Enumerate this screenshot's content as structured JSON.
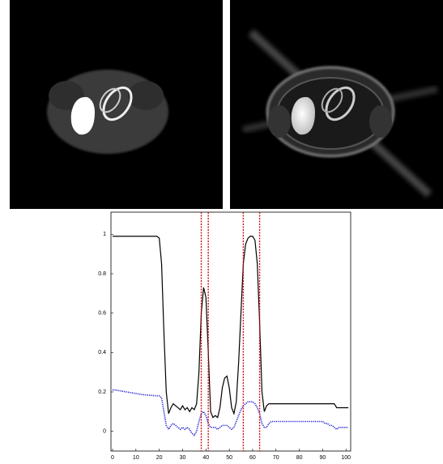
{
  "chart_data": {
    "type": "line",
    "x": [
      0,
      1,
      2,
      3,
      4,
      5,
      6,
      7,
      8,
      9,
      10,
      11,
      12,
      13,
      14,
      15,
      16,
      17,
      18,
      19,
      20,
      21,
      22,
      23,
      24,
      25,
      26,
      27,
      28,
      29,
      30,
      31,
      32,
      33,
      34,
      35,
      36,
      37,
      38,
      39,
      40,
      41,
      42,
      43,
      44,
      45,
      46,
      47,
      48,
      49,
      50,
      51,
      52,
      53,
      54,
      55,
      56,
      57,
      58,
      59,
      60,
      61,
      62,
      63,
      64,
      65,
      66,
      67,
      68,
      69,
      70,
      71,
      72,
      73,
      74,
      75,
      76,
      77,
      78,
      79,
      80,
      81,
      82,
      83,
      84,
      85,
      86,
      87,
      88,
      89,
      90,
      91,
      92,
      93,
      94,
      95,
      96,
      97,
      98,
      99,
      100,
      101
    ],
    "series": [
      {
        "color": "#000000",
        "style": "solid",
        "values": [
          0.99,
          0.99,
          0.99,
          0.99,
          0.99,
          0.99,
          0.99,
          0.99,
          0.99,
          0.99,
          0.99,
          0.99,
          0.99,
          0.99,
          0.99,
          0.99,
          0.99,
          0.99,
          0.99,
          0.99,
          0.98,
          0.85,
          0.5,
          0.2,
          0.09,
          0.12,
          0.14,
          0.13,
          0.12,
          0.11,
          0.13,
          0.11,
          0.12,
          0.1,
          0.12,
          0.11,
          0.14,
          0.3,
          0.6,
          0.73,
          0.68,
          0.4,
          0.1,
          0.07,
          0.08,
          0.07,
          0.12,
          0.22,
          0.27,
          0.28,
          0.22,
          0.12,
          0.09,
          0.15,
          0.35,
          0.6,
          0.85,
          0.95,
          0.98,
          0.99,
          0.99,
          0.97,
          0.85,
          0.55,
          0.2,
          0.1,
          0.13,
          0.14,
          0.14,
          0.14,
          0.14,
          0.14,
          0.14,
          0.14,
          0.14,
          0.14,
          0.14,
          0.14,
          0.14,
          0.14,
          0.14,
          0.14,
          0.14,
          0.14,
          0.14,
          0.14,
          0.14,
          0.14,
          0.14,
          0.14,
          0.14,
          0.14,
          0.14,
          0.14,
          0.14,
          0.14,
          0.12,
          0.12,
          0.12,
          0.12,
          0.12,
          0.12
        ]
      },
      {
        "color": "#1f1fd0",
        "style": "dotted",
        "values": [
          0.21,
          0.21,
          0.208,
          0.206,
          0.204,
          0.202,
          0.2,
          0.198,
          0.196,
          0.194,
          0.192,
          0.19,
          0.188,
          0.186,
          0.185,
          0.184,
          0.183,
          0.182,
          0.181,
          0.18,
          0.18,
          0.17,
          0.1,
          0.03,
          0.01,
          0.03,
          0.04,
          0.03,
          0.02,
          0.01,
          0.02,
          0.01,
          0.02,
          0.01,
          -0.01,
          -0.02,
          0.0,
          0.05,
          0.09,
          0.1,
          0.08,
          0.04,
          0.02,
          0.02,
          0.02,
          0.01,
          0.02,
          0.03,
          0.03,
          0.03,
          0.02,
          0.01,
          0.02,
          0.05,
          0.08,
          0.11,
          0.13,
          0.14,
          0.15,
          0.15,
          0.15,
          0.14,
          0.12,
          0.09,
          0.04,
          0.02,
          0.02,
          0.04,
          0.05,
          0.05,
          0.05,
          0.05,
          0.05,
          0.05,
          0.05,
          0.05,
          0.05,
          0.05,
          0.05,
          0.05,
          0.05,
          0.05,
          0.05,
          0.05,
          0.05,
          0.05,
          0.05,
          0.05,
          0.05,
          0.05,
          0.05,
          0.04,
          0.04,
          0.03,
          0.03,
          0.02,
          0.01,
          0.02,
          0.02,
          0.02,
          0.02,
          0.02
        ]
      }
    ],
    "vlines": [
      38,
      41,
      56,
      63
    ],
    "vline_color": "#d01010",
    "xlim": [
      0,
      102
    ],
    "ylim": [
      -0.1,
      1.1
    ],
    "xticks": [
      0,
      10,
      20,
      30,
      40,
      50,
      60,
      70,
      80,
      90,
      100
    ],
    "yticks": [
      0,
      0.2,
      0.4,
      0.6,
      0.8,
      1
    ]
  }
}
